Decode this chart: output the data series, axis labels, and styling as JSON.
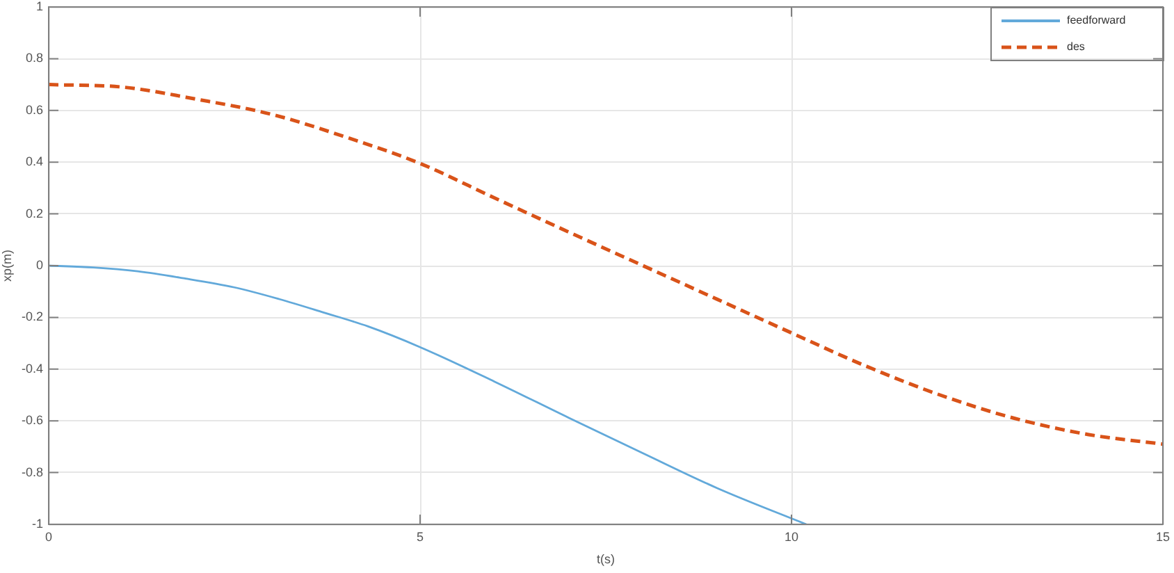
{
  "chart_data": {
    "type": "line",
    "xlabel": "t(s)",
    "ylabel": "xp(m)",
    "xlim": [
      0,
      15
    ],
    "ylim": [
      -1,
      1
    ],
    "xticks": [
      0,
      5,
      10,
      15
    ],
    "yticks": [
      -1,
      -0.8,
      -0.6,
      -0.4,
      -0.2,
      0,
      0.2,
      0.4,
      0.6,
      0.8,
      1
    ],
    "grid": true,
    "legend": "top right",
    "series": [
      {
        "name": "feedforward",
        "color": "#62a9da",
        "line_style": "solid",
        "x": [
          0,
          0.6,
          1.2,
          1.8,
          2.5,
          3.1,
          3.7,
          4.3,
          5,
          6,
          7,
          8,
          9,
          10.2
        ],
        "values": [
          0,
          -0.007,
          -0.022,
          -0.048,
          -0.084,
          -0.129,
          -0.181,
          -0.235,
          -0.315,
          -0.448,
          -0.588,
          -0.725,
          -0.86,
          -1
        ]
      },
      {
        "name": "des",
        "color": "#d95319",
        "line_style": "dashed",
        "x": [
          0,
          1,
          2,
          3,
          4,
          5,
          6,
          7,
          8,
          9,
          10,
          11,
          12,
          13,
          14,
          15
        ],
        "values": [
          0.7,
          0.69,
          0.643,
          0.585,
          0.497,
          0.395,
          0.262,
          0.13,
          0,
          -0.13,
          -0.26,
          -0.388,
          -0.5,
          -0.59,
          -0.653,
          -0.69
        ]
      }
    ]
  }
}
